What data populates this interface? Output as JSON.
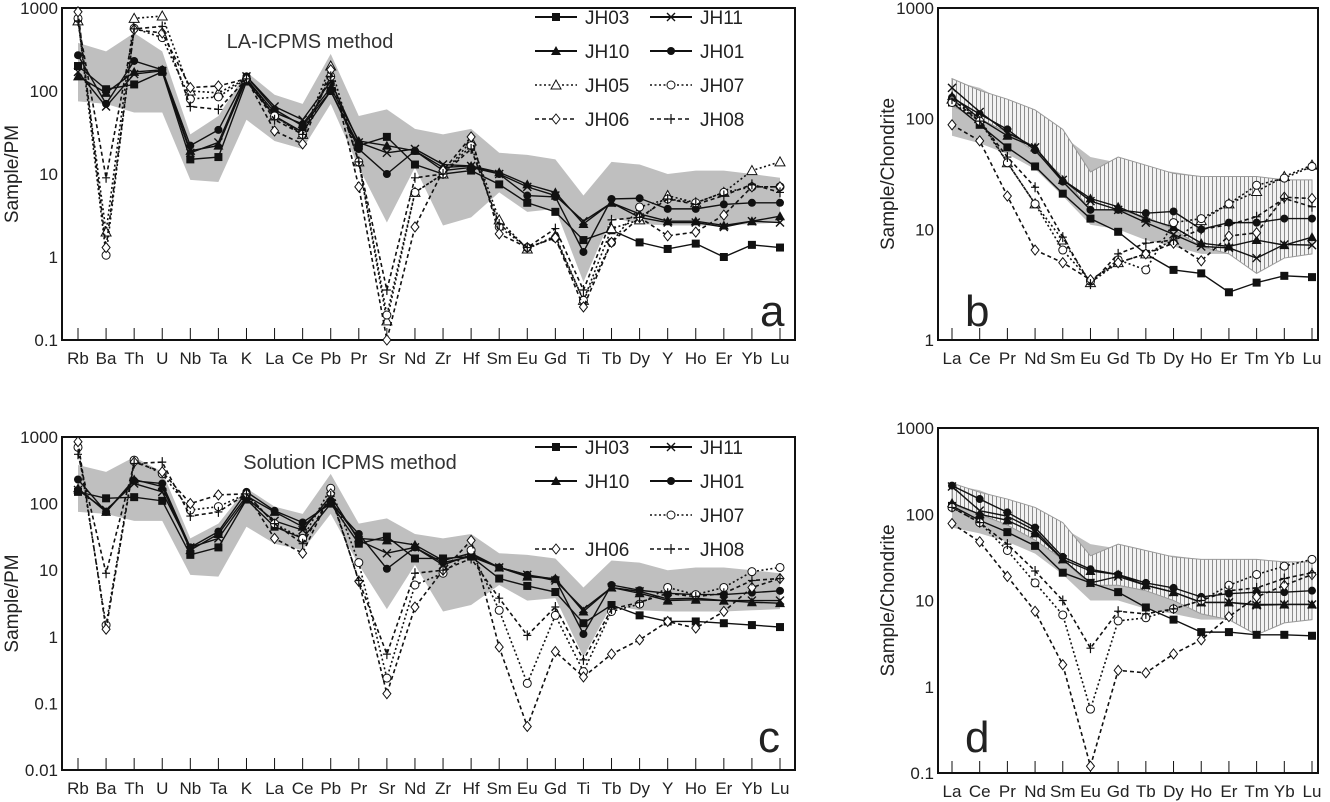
{
  "colors": {
    "field": "#bfbfbf",
    "hatch": "#999999",
    "line": "#111111"
  },
  "series_styles": {
    "JH03": {
      "marker": "square-filled",
      "line": "solid"
    },
    "JH10": {
      "marker": "triangle-filled",
      "line": "solid"
    },
    "JH11": {
      "marker": "cross-x",
      "line": "solid"
    },
    "JH01": {
      "marker": "circle-filled",
      "line": "solid"
    },
    "JH05": {
      "marker": "triangle-open",
      "line": "dotted"
    },
    "JH07": {
      "marker": "circle-open",
      "line": "dotted"
    },
    "JH06": {
      "marker": "diamond-open",
      "line": "dashed"
    },
    "JH08": {
      "marker": "plus",
      "line": "dashed"
    }
  },
  "chart_data": [
    {
      "id": "a",
      "type": "line",
      "letter": "a",
      "title": "LA-ICPMS method",
      "ylabel": "Sample/PM",
      "yscale": "log",
      "ylim": [
        0.1,
        1000
      ],
      "yticks": [
        "1000",
        "100",
        "10",
        "1",
        "0.1"
      ],
      "legend": [
        [
          "JH03",
          "JH11"
        ],
        [
          "JH10",
          "JH01"
        ],
        [
          "JH05",
          "JH07"
        ],
        [
          "JH06",
          "JH08"
        ]
      ],
      "categories": [
        "Rb",
        "Ba",
        "Th",
        "U",
        "Nb",
        "Ta",
        "K",
        "La",
        "Ce",
        "Pb",
        "Pr",
        "Sr",
        "Nd",
        "Zr",
        "Hf",
        "Sm",
        "Eu",
        "Gd",
        "Ti",
        "Tb",
        "Dy",
        "Y",
        "Ho",
        "Er",
        "Yb",
        "Lu"
      ],
      "field": {
        "upper": [
          380,
          300,
          500,
          300,
          30,
          50,
          170,
          90,
          70,
          280,
          50,
          60,
          35,
          30,
          35,
          18,
          17,
          15,
          5.5,
          14,
          13,
          10,
          11,
          11,
          10,
          9
        ],
        "lower": [
          75,
          70,
          55,
          55,
          8.5,
          8,
          45,
          25,
          20,
          70,
          12,
          2.6,
          12,
          2.4,
          3,
          6,
          3.5,
          3.8,
          0.5,
          3,
          2.5,
          2.4,
          2.4,
          2.4,
          2.5,
          2.6
        ]
      },
      "series": [
        {
          "name": "JH03",
          "values": [
            200,
            105,
            120,
            170,
            15,
            16,
            130,
            50,
            32,
            100,
            22,
            28,
            13,
            10,
            11,
            7.5,
            4.5,
            3.5,
            1.6,
            2.1,
            1.5,
            1.25,
            1.45,
            1.0,
            1.4,
            1.3
          ]
        },
        {
          "name": "JH10",
          "values": [
            150,
            95,
            170,
            180,
            19,
            22,
            140,
            55,
            40,
            110,
            25,
            22,
            19,
            12,
            12.5,
            10.5,
            7.5,
            6,
            2.5,
            4.5,
            3.3,
            2.7,
            2.7,
            2.4,
            2.7,
            3.1
          ]
        },
        {
          "name": "JH11",
          "values": [
            170,
            65,
            160,
            175,
            18,
            24,
            150,
            65,
            45,
            130,
            24,
            18,
            20,
            13,
            12.5,
            10,
            7,
            5.5,
            2.7,
            4.5,
            3,
            2.6,
            2.6,
            2.3,
            2.7,
            2.6
          ]
        },
        {
          "name": "JH01",
          "values": [
            270,
            70,
            230,
            180,
            22,
            34,
            150,
            60,
            38,
            100,
            20,
            10,
            19,
            11,
            12,
            10,
            5.5,
            5.3,
            1.15,
            5,
            5.1,
            3.8,
            3.8,
            4.3,
            4.5,
            4.5
          ]
        },
        {
          "name": "JH05",
          "values": [
            700,
            2,
            750,
            800,
            100,
            95,
            140,
            50,
            30,
            200,
            14,
            0.17,
            6,
            10,
            25,
            2.8,
            1.25,
            1.8,
            0.3,
            2.2,
            2.8,
            5.5,
            4.5,
            6,
            11,
            14
          ]
        },
        {
          "name": "JH07",
          "values": [
            750,
            1.05,
            570,
            440,
            80,
            85,
            140,
            50,
            30,
            150,
            14,
            0.2,
            6,
            10,
            22,
            2.3,
            1.3,
            1.7,
            0.3,
            1.5,
            4,
            5,
            4.5,
            6,
            7,
            7
          ]
        },
        {
          "name": "JH06",
          "values": [
            900,
            1.3,
            550,
            500,
            110,
            115,
            140,
            33,
            23,
            180,
            7,
            0.1,
            2.3,
            11,
            28,
            1.9,
            1.3,
            1.7,
            0.25,
            1.5,
            3,
            1.8,
            2,
            3.2,
            7,
            7
          ]
        },
        {
          "name": "JH08",
          "values": [
            700,
            9,
            560,
            600,
            65,
            60,
            140,
            45,
            30,
            150,
            14,
            0.4,
            9,
            10,
            20,
            2.5,
            1.3,
            2.2,
            0.4,
            2.8,
            3,
            5,
            4.3,
            5.5,
            7.5,
            6
          ]
        }
      ]
    },
    {
      "id": "b",
      "type": "line",
      "letter": "b",
      "title": "",
      "ylabel": "Sample/Chondrite",
      "yscale": "log",
      "ylim": [
        1,
        1000
      ],
      "yticks": [
        "1000",
        "100",
        "10",
        "1"
      ],
      "categories": [
        "La",
        "Ce",
        "Pr",
        "Nd",
        "Sm",
        "Eu",
        "Gd",
        "Tb",
        "Dy",
        "Ho",
        "Er",
        "Tm",
        "Yb",
        "Lu"
      ],
      "field": {
        "upper": [
          220,
          190,
          140,
          110,
          70,
          45,
          40,
          35,
          33,
          30,
          28,
          28,
          28,
          28
        ],
        "lower": [
          70,
          60,
          48,
          35,
          20,
          11,
          10,
          8,
          7,
          6,
          6,
          6,
          6,
          6
        ]
      },
      "hatched_field": {
        "upper": [
          230,
          180,
          150,
          120,
          80,
          33,
          45,
          38,
          32,
          30,
          30,
          30,
          28,
          28
        ],
        "lower": [
          130,
          100,
          75,
          50,
          30,
          15,
          15,
          13,
          10,
          7,
          6,
          4,
          5.5,
          6
        ]
      },
      "series": [
        {
          "name": "JH03",
          "values": [
            140,
            88,
            55,
            37,
            21,
            12.5,
            9.5,
            6,
            4.3,
            4,
            2.7,
            3.3,
            3.8,
            3.7
          ]
        },
        {
          "name": "JH10",
          "values": [
            160,
            100,
            70,
            55,
            28,
            19,
            16,
            12.5,
            10.5,
            7.5,
            7,
            8,
            7.2,
            8.5
          ]
        },
        {
          "name": "JH11",
          "values": [
            190,
            115,
            75,
            55,
            28,
            18,
            15,
            11.5,
            9,
            7,
            6.8,
            5.5,
            7.3,
            7.2
          ]
        },
        {
          "name": "JH01",
          "values": [
            155,
            110,
            80,
            52,
            27,
            15,
            15,
            14,
            14.5,
            10,
            11.5,
            11.5,
            12.5,
            12.5
          ]
        },
        {
          "name": "JH05",
          "values": [
            150,
            100,
            40,
            17,
            8,
            3.3,
            5,
            6,
            8,
            12,
            17,
            22,
            30,
            38
          ]
        },
        {
          "name": "JH07",
          "values": [
            140,
            95,
            40,
            17,
            6.5,
            3.4,
            5.3,
            4.3,
            11.5,
            12.5,
            17,
            25,
            29,
            37
          ]
        },
        {
          "name": "JH06",
          "values": [
            88,
            63,
            20,
            6.5,
            5,
            3.5,
            5,
            6,
            7.5,
            5.2,
            8.7,
            9.3,
            19.5,
            19
          ]
        },
        {
          "name": "JH08",
          "values": [
            150,
            95,
            45,
            24,
            8.5,
            3.2,
            6,
            7.5,
            8,
            10,
            11,
            13,
            19,
            16
          ]
        }
      ]
    },
    {
      "id": "c",
      "type": "line",
      "letter": "c",
      "title": "Solution ICPMS method",
      "ylabel": "Sample/PM",
      "yscale": "log",
      "ylim": [
        0.01,
        1000
      ],
      "yticks": [
        "1000",
        "100",
        "10",
        "1",
        "0.1",
        "0.01"
      ],
      "legend": [
        [
          "JH03",
          "JH11"
        ],
        [
          "JH10",
          "JH01"
        ],
        [
          "",
          "JH07"
        ],
        [
          "JH06",
          "JH08"
        ]
      ],
      "categories": [
        "Rb",
        "Ba",
        "Th",
        "U",
        "Nb",
        "Ta",
        "K",
        "La",
        "Ce",
        "Pb",
        "Pr",
        "Sr",
        "Nd",
        "Zr",
        "Hf",
        "Sm",
        "Eu",
        "Gd",
        "Ti",
        "Tb",
        "Dy",
        "Y",
        "Ho",
        "Er",
        "Yb",
        "Lu"
      ],
      "field": {
        "upper": [
          380,
          300,
          500,
          300,
          30,
          50,
          170,
          90,
          70,
          280,
          50,
          60,
          35,
          30,
          35,
          18,
          17,
          15,
          5.5,
          14,
          13,
          10,
          11,
          11,
          10,
          9
        ],
        "lower": [
          75,
          70,
          55,
          55,
          8.5,
          8,
          45,
          25,
          20,
          70,
          12,
          2.6,
          12,
          2.4,
          3,
          6,
          3.5,
          3.8,
          0.5,
          3,
          2.5,
          2.4,
          2.4,
          2.4,
          2.5,
          2.6
        ]
      },
      "series": [
        {
          "name": "JH03",
          "values": [
            150,
            120,
            125,
            110,
            17,
            22,
            115,
            45,
            30,
            100,
            25,
            32,
            15,
            15,
            16,
            7.5,
            5.8,
            4.7,
            1.6,
            3,
            2.1,
            1.7,
            1.7,
            1.6,
            1.5,
            1.4
          ]
        },
        {
          "name": "JH10",
          "values": [
            170,
            75,
            230,
            180,
            20,
            35,
            130,
            75,
            45,
            110,
            30,
            28,
            24,
            14,
            18,
            11,
            8,
            7.5,
            2.4,
            5.5,
            4.5,
            3.5,
            3.6,
            3.5,
            3.3,
            3.2
          ]
        },
        {
          "name": "JH11",
          "values": [
            160,
            80,
            200,
            150,
            22,
            30,
            120,
            55,
            40,
            130,
            28,
            18,
            22,
            12,
            17,
            11,
            8.5,
            7,
            2.6,
            5.5,
            4.8,
            3.7,
            3.8,
            3.5,
            3.5,
            3.5
          ]
        },
        {
          "name": "JH01",
          "values": [
            230,
            75,
            220,
            200,
            22,
            38,
            150,
            78,
            52,
            100,
            35,
            10.5,
            22,
            13,
            16,
            11,
            8.5,
            7.3,
            1.1,
            6,
            5,
            4.5,
            4.3,
            4.3,
            4.6,
            4.9
          ]
        },
        {
          "name": "JH07",
          "values": [
            700,
            1.5,
            450,
            280,
            80,
            90,
            140,
            50,
            30,
            170,
            13,
            0.24,
            6,
            9,
            20,
            2.5,
            0.2,
            2.1,
            0.3,
            2.4,
            3.1,
            5.5,
            4.3,
            5.5,
            9.5,
            11
          ]
        },
        {
          "name": "JH06",
          "values": [
            850,
            1.3,
            420,
            300,
            100,
            135,
            140,
            30,
            18,
            140,
            6.8,
            0.14,
            2.8,
            10,
            28,
            0.7,
            0.045,
            0.6,
            0.25,
            0.55,
            0.9,
            1.7,
            1.35,
            2.4,
            5.5,
            7.5
          ]
        },
        {
          "name": "JH08",
          "values": [
            550,
            9,
            400,
            420,
            65,
            75,
            140,
            50,
            25,
            130,
            7,
            0.55,
            9,
            10,
            15,
            3.8,
            1.05,
            2.8,
            0.45,
            2.6,
            3.3,
            4.5,
            4,
            4.5,
            7,
            7.5
          ]
        }
      ]
    },
    {
      "id": "d",
      "type": "line",
      "letter": "d",
      "title": "",
      "ylabel": "Sample/Chondrite",
      "yscale": "log",
      "ylim": [
        0.1,
        1000
      ],
      "yticks": [
        "1000",
        "100",
        "10",
        "1",
        "0.1"
      ],
      "categories": [
        "La",
        "Ce",
        "Pr",
        "Nd",
        "Sm",
        "Eu",
        "Gd",
        "Tb",
        "Dy",
        "Ho",
        "Er",
        "Tm",
        "Yb",
        "Lu"
      ],
      "field": {
        "upper": [
          220,
          190,
          140,
          110,
          70,
          45,
          40,
          35,
          33,
          30,
          28,
          28,
          28,
          28
        ],
        "lower": [
          70,
          60,
          48,
          35,
          20,
          10,
          10,
          8,
          7,
          6,
          6,
          6,
          6,
          6
        ]
      },
      "hatched_field": {
        "upper": [
          230,
          180,
          150,
          120,
          80,
          33,
          45,
          38,
          32,
          30,
          30,
          30,
          28,
          28
        ],
        "lower": [
          130,
          100,
          75,
          50,
          30,
          15,
          15,
          13,
          10,
          7,
          6,
          4,
          5.5,
          6
        ]
      },
      "series": [
        {
          "name": "JH03",
          "values": [
            125,
            85,
            62,
            43,
            21,
            16,
            12.5,
            8.3,
            6,
            4.3,
            4.3,
            4,
            4,
            3.9
          ]
        },
        {
          "name": "JH10",
          "values": [
            135,
            100,
            85,
            60,
            30,
            22,
            20,
            15,
            12.5,
            9.5,
            9.5,
            9,
            9,
            9
          ]
        },
        {
          "name": "JH11",
          "values": [
            210,
            110,
            95,
            65,
            30,
            16,
            19,
            15,
            12.5,
            9.5,
            9.5,
            8.8,
            9,
            9
          ]
        },
        {
          "name": "JH01",
          "values": [
            215,
            150,
            105,
            70,
            32,
            23,
            20,
            16,
            14,
            11,
            12,
            12.5,
            12.5,
            13
          ]
        },
        {
          "name": "JH07",
          "values": [
            120,
            80,
            38,
            16,
            6.8,
            0.55,
            5.8,
            6.3,
            8,
            10,
            15,
            20,
            25,
            30
          ]
        },
        {
          "name": "JH06",
          "values": [
            78,
            48,
            19,
            7.5,
            1.8,
            0.12,
            1.55,
            1.45,
            2.4,
            3.5,
            6.5,
            11,
            15,
            20
          ]
        },
        {
          "name": "JH08",
          "values": [
            120,
            80,
            45,
            22,
            10,
            2.8,
            7.5,
            7,
            8,
            10,
            13,
            14,
            18,
            21
          ]
        }
      ]
    }
  ]
}
